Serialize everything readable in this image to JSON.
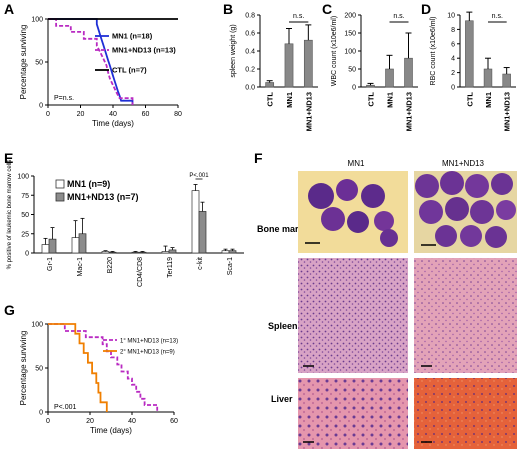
{
  "panel_labels": {
    "A": "A",
    "B": "B",
    "C": "C",
    "D": "D",
    "E": "E",
    "F": "F",
    "G": "G"
  },
  "colors": {
    "mn1": "#1f2fd6",
    "mn1nd13": "#b92ac2",
    "ctl": "#000000",
    "secondary": "#f07f00",
    "bar": "#888888",
    "bar_light": "#ffffff",
    "bar_dark": "#8c8c8c"
  },
  "chart_data": [
    {
      "id": "A",
      "type": "line",
      "subtype": "kaplan-meier",
      "ylabel": "Percentage surviving",
      "xlabel": "Time (days)",
      "xlim": [
        0,
        80
      ],
      "ylim": [
        0,
        100
      ],
      "xticks": [
        "0",
        "20",
        "40",
        "60",
        "80"
      ],
      "yticks": [
        "0",
        "50",
        "100"
      ],
      "annotation": "P=n.s.",
      "series": [
        {
          "name": "MN1 (n=18)",
          "points": [
            [
              0,
              100
            ],
            [
              30,
              100
            ],
            [
              30,
              94
            ],
            [
              31,
              88
            ],
            [
              32,
              82
            ],
            [
              33,
              76
            ],
            [
              34,
              70
            ],
            [
              35,
              64
            ],
            [
              36,
              58
            ],
            [
              37,
              52
            ],
            [
              38,
              46
            ],
            [
              39,
              40
            ],
            [
              40,
              34
            ],
            [
              41,
              28
            ],
            [
              42,
              22
            ],
            [
              43,
              16
            ],
            [
              44,
              11
            ],
            [
              45,
              5
            ],
            [
              52,
              5
            ],
            [
              52,
              0
            ]
          ]
        },
        {
          "name": "MN1+ND13 (n=13)",
          "points": [
            [
              0,
              100
            ],
            [
              5,
              100
            ],
            [
              5,
              92
            ],
            [
              14,
              92
            ],
            [
              14,
              85
            ],
            [
              22,
              85
            ],
            [
              22,
              77
            ],
            [
              30,
              77
            ],
            [
              30,
              69
            ],
            [
              32,
              62
            ],
            [
              34,
              54
            ],
            [
              36,
              46
            ],
            [
              37,
              38
            ],
            [
              38,
              31
            ],
            [
              40,
              23
            ],
            [
              42,
              15
            ],
            [
              44,
              8
            ],
            [
              52,
              8
            ],
            [
              52,
              0
            ]
          ]
        },
        {
          "name": "CTL (n=7)",
          "points": [
            [
              0,
              100
            ],
            [
              80,
              100
            ]
          ]
        }
      ]
    },
    {
      "id": "B",
      "type": "bar",
      "ylabel": "spleen weight (g)",
      "categories": [
        "CTL",
        "MN1",
        "MN1+ND13"
      ],
      "values": [
        0.05,
        0.48,
        0.52
      ],
      "errors": [
        0.02,
        0.17,
        0.17
      ],
      "ylim": [
        0,
        0.8
      ],
      "yticks": [
        "0.0",
        "0.2",
        "0.4",
        "0.6",
        "0.8"
      ],
      "annotation": "n.s."
    },
    {
      "id": "C",
      "type": "bar",
      "ylabel": "WBC count (x10e6/ml)",
      "categories": [
        "CTL",
        "MN1",
        "MN1+ND13"
      ],
      "values": [
        5,
        50,
        80
      ],
      "errors": [
        5,
        38,
        70
      ],
      "ylim": [
        0,
        200
      ],
      "yticks": [
        "0",
        "50",
        "100",
        "150",
        "200"
      ],
      "annotation": "n.s."
    },
    {
      "id": "D",
      "type": "bar",
      "ylabel": "RBC count (x10e6/ml)",
      "categories": [
        "CTL",
        "MN1",
        "MN1+ND13"
      ],
      "values": [
        9.2,
        2.5,
        1.8
      ],
      "errors": [
        1.2,
        1.5,
        0.9
      ],
      "ylim": [
        0,
        10
      ],
      "yticks": [
        "0",
        "2",
        "4",
        "6",
        "8",
        "10"
      ],
      "annotation": "n.s."
    },
    {
      "id": "E",
      "type": "bar",
      "ylabel": "% positive of leukemic bone marrow cells",
      "categories": [
        "Gr-1",
        "Mac-1",
        "B220",
        "CD4/CD8",
        "Ter119",
        "c-kit",
        "Sca-1"
      ],
      "series": [
        {
          "name": "MN1 (n=9)",
          "values": [
            11,
            20,
            2,
            1,
            2,
            81,
            3
          ],
          "errors": [
            8,
            22,
            1,
            1,
            7,
            8,
            2
          ]
        },
        {
          "name": "MN1+ND13 (n=7)",
          "values": [
            18,
            25,
            1,
            1,
            4,
            54,
            3
          ],
          "errors": [
            15,
            20,
            1,
            1,
            3,
            12,
            2
          ]
        }
      ],
      "ylim": [
        0,
        100
      ],
      "yticks": [
        "0",
        "25",
        "50",
        "75",
        "100"
      ],
      "annotation": "P<.001"
    },
    {
      "id": "G",
      "type": "line",
      "subtype": "kaplan-meier",
      "ylabel": "Percentage surviving",
      "xlabel": "Time (days)",
      "xlim": [
        0,
        60
      ],
      "ylim": [
        0,
        100
      ],
      "xticks": [
        "0",
        "20",
        "40",
        "60"
      ],
      "yticks": [
        "0",
        "50",
        "100"
      ],
      "annotation": "P<.001",
      "series": [
        {
          "name": "1° MN1+ND13 (n=13)",
          "points": [
            [
              0,
              100
            ],
            [
              8,
              100
            ],
            [
              8,
              92
            ],
            [
              18,
              92
            ],
            [
              18,
              85
            ],
            [
              26,
              85
            ],
            [
              26,
              77
            ],
            [
              28,
              77
            ],
            [
              28,
              69
            ],
            [
              30,
              69
            ],
            [
              30,
              62
            ],
            [
              33,
              62
            ],
            [
              33,
              54
            ],
            [
              35,
              54
            ],
            [
              35,
              46
            ],
            [
              38,
              46
            ],
            [
              38,
              38
            ],
            [
              40,
              38
            ],
            [
              40,
              31
            ],
            [
              42,
              31
            ],
            [
              42,
              23
            ],
            [
              44,
              23
            ],
            [
              44,
              15
            ],
            [
              46,
              15
            ],
            [
              46,
              8
            ],
            [
              52,
              8
            ],
            [
              52,
              0
            ]
          ]
        },
        {
          "name": "2° MN1+ND13 (n=9)",
          "points": [
            [
              0,
              100
            ],
            [
              13,
              100
            ],
            [
              13,
              89
            ],
            [
              15,
              89
            ],
            [
              15,
              78
            ],
            [
              17,
              78
            ],
            [
              17,
              67
            ],
            [
              19,
              67
            ],
            [
              19,
              56
            ],
            [
              21,
              56
            ],
            [
              21,
              44
            ],
            [
              23,
              44
            ],
            [
              23,
              33
            ],
            [
              24,
              33
            ],
            [
              24,
              22
            ],
            [
              25,
              22
            ],
            [
              25,
              11
            ],
            [
              28,
              11
            ],
            [
              28,
              0
            ]
          ]
        }
      ]
    }
  ],
  "histology": {
    "col_headers": [
      "MN1",
      "MN1+ND13"
    ],
    "row_labels": [
      "Bone marrow",
      "Spleen",
      "Liver"
    ]
  }
}
